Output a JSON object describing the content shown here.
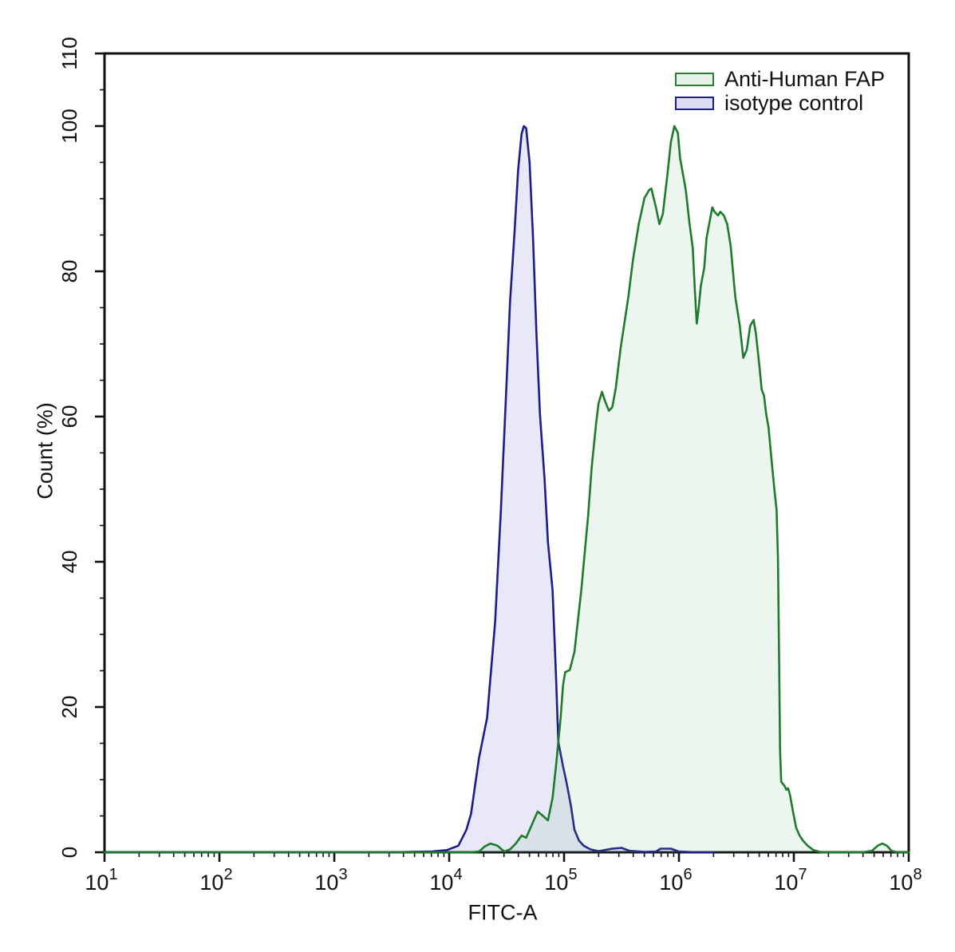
{
  "figure": {
    "background": "#ffffff",
    "axis_color": "#111111"
  },
  "legend": {
    "items": [
      {
        "label": "Anti-Human FAP",
        "swatch_stroke": "#2e7d36",
        "swatch_fill": "#e8f2e8"
      },
      {
        "label": "isotype control",
        "swatch_stroke": "#1c1c8c",
        "swatch_fill": "#dcdcf2"
      }
    ]
  },
  "chart_data": {
    "type": "area",
    "title": "",
    "xlabel": "FITC-A",
    "ylabel": "Count (%)",
    "x_scale": "log10",
    "xlim_log10": [
      1,
      8
    ],
    "ylim": [
      0,
      110
    ],
    "grid": false,
    "legend_position": "top-right-inside",
    "x_tick_base": "10",
    "x_tick_exponents": [
      1,
      2,
      3,
      4,
      5,
      6,
      7,
      8
    ],
    "x_minor_mantissas": [
      2,
      3,
      4,
      5,
      6,
      7,
      8,
      9
    ],
    "y_ticks_labeled": [
      0,
      20,
      40,
      60,
      80,
      100,
      110
    ],
    "y_minor_step": 5,
    "series": [
      {
        "name": "isotype control",
        "stroke": "#1c1c8c",
        "fill": "rgba(95,95,205,0.14)",
        "points_log10x_pct": [
          [
            1.0,
            0
          ],
          [
            3.5,
            0
          ],
          [
            3.85,
            0.1
          ],
          [
            3.98,
            0.3
          ],
          [
            4.08,
            0.9
          ],
          [
            4.15,
            3.1
          ],
          [
            4.19,
            5.3
          ],
          [
            4.22,
            8.6
          ],
          [
            4.26,
            13.0
          ],
          [
            4.33,
            18.5
          ],
          [
            4.4,
            31.7
          ],
          [
            4.45,
            47.1
          ],
          [
            4.5,
            64.8
          ],
          [
            4.53,
            75.8
          ],
          [
            4.57,
            85.7
          ],
          [
            4.6,
            93.9
          ],
          [
            4.63,
            98.9
          ],
          [
            4.65,
            100.0
          ],
          [
            4.67,
            99.7
          ],
          [
            4.7,
            95.0
          ],
          [
            4.73,
            84.6
          ],
          [
            4.76,
            71.4
          ],
          [
            4.79,
            60.3
          ],
          [
            4.83,
            51.5
          ],
          [
            4.86,
            42.7
          ],
          [
            4.9,
            36.1
          ],
          [
            4.93,
            24.3
          ],
          [
            4.95,
            15.2
          ],
          [
            4.99,
            11.9
          ],
          [
            5.02,
            9.7
          ],
          [
            5.06,
            6.4
          ],
          [
            5.09,
            3.1
          ],
          [
            5.13,
            1.6
          ],
          [
            5.17,
            0.9
          ],
          [
            5.23,
            0.4
          ],
          [
            5.3,
            0.15
          ],
          [
            5.42,
            0.5
          ],
          [
            5.5,
            0.6
          ],
          [
            5.57,
            0.2
          ],
          [
            5.7,
            0.05
          ],
          [
            5.8,
            0.1
          ],
          [
            5.84,
            0.5
          ],
          [
            5.93,
            0.5
          ],
          [
            6.0,
            0.1
          ],
          [
            6.15,
            0.0
          ],
          [
            6.3,
            0.0
          ]
        ]
      },
      {
        "name": "Anti-Human FAP",
        "stroke": "#1e7b2d",
        "fill": "rgba(110,180,120,0.13)",
        "points_log10x_pct": [
          [
            1.0,
            0
          ],
          [
            4.18,
            0
          ],
          [
            4.26,
            0.1
          ],
          [
            4.31,
            0.8
          ],
          [
            4.36,
            1.2
          ],
          [
            4.42,
            0.9
          ],
          [
            4.48,
            0.1
          ],
          [
            4.53,
            0.4
          ],
          [
            4.58,
            1.2
          ],
          [
            4.63,
            2.3
          ],
          [
            4.67,
            2.0
          ],
          [
            4.72,
            3.8
          ],
          [
            4.77,
            5.6
          ],
          [
            4.81,
            5.1
          ],
          [
            4.86,
            4.4
          ],
          [
            4.9,
            7.5
          ],
          [
            4.93,
            11.9
          ],
          [
            4.95,
            15.2
          ],
          [
            4.97,
            18.5
          ],
          [
            4.99,
            22.9
          ],
          [
            5.01,
            24.8
          ],
          [
            5.05,
            25.1
          ],
          [
            5.09,
            27.6
          ],
          [
            5.15,
            36.1
          ],
          [
            5.21,
            46.4
          ],
          [
            5.24,
            53.0
          ],
          [
            5.28,
            59.2
          ],
          [
            5.3,
            61.8
          ],
          [
            5.33,
            63.4
          ],
          [
            5.36,
            62.0
          ],
          [
            5.39,
            60.8
          ],
          [
            5.42,
            61.3
          ],
          [
            5.45,
            63.9
          ],
          [
            5.49,
            69.2
          ],
          [
            5.56,
            76.5
          ],
          [
            5.6,
            81.6
          ],
          [
            5.65,
            86.5
          ],
          [
            5.7,
            90.1
          ],
          [
            5.74,
            91.2
          ],
          [
            5.76,
            91.4
          ],
          [
            5.8,
            88.8
          ],
          [
            5.83,
            86.5
          ],
          [
            5.86,
            87.9
          ],
          [
            5.9,
            93.4
          ],
          [
            5.93,
            97.8
          ],
          [
            5.96,
            100.0
          ],
          [
            5.99,
            99.1
          ],
          [
            6.01,
            95.6
          ],
          [
            6.06,
            91.2
          ],
          [
            6.09,
            86.8
          ],
          [
            6.12,
            83.2
          ],
          [
            6.14,
            76.9
          ],
          [
            6.155,
            72.8
          ],
          [
            6.17,
            74.7
          ],
          [
            6.19,
            78.0
          ],
          [
            6.22,
            80.5
          ],
          [
            6.24,
            84.6
          ],
          [
            6.29,
            88.8
          ],
          [
            6.31,
            88.2
          ],
          [
            6.34,
            87.7
          ],
          [
            6.36,
            88.2
          ],
          [
            6.39,
            87.7
          ],
          [
            6.42,
            86.5
          ],
          [
            6.45,
            83.5
          ],
          [
            6.49,
            76.5
          ],
          [
            6.53,
            72.5
          ],
          [
            6.56,
            68.1
          ],
          [
            6.59,
            69.2
          ],
          [
            6.62,
            72.5
          ],
          [
            6.65,
            73.3
          ],
          [
            6.67,
            71.4
          ],
          [
            6.7,
            67.0
          ],
          [
            6.72,
            63.7
          ],
          [
            6.74,
            62.9
          ],
          [
            6.76,
            60.3
          ],
          [
            6.78,
            58.5
          ],
          [
            6.81,
            53.4
          ],
          [
            6.83,
            50.1
          ],
          [
            6.85,
            47.1
          ],
          [
            6.862,
            40.5
          ],
          [
            6.868,
            31.7
          ],
          [
            6.874,
            22.9
          ],
          [
            6.88,
            14.1
          ],
          [
            6.89,
            9.7
          ],
          [
            6.92,
            9.1
          ],
          [
            6.935,
            8.6
          ],
          [
            6.95,
            8.8
          ],
          [
            6.965,
            8.0
          ],
          [
            6.99,
            5.8
          ],
          [
            7.02,
            3.4
          ],
          [
            7.05,
            2.3
          ],
          [
            7.08,
            1.6
          ],
          [
            7.12,
            0.9
          ],
          [
            7.17,
            0.3
          ],
          [
            7.24,
            0.0
          ],
          [
            7.6,
            0.0
          ],
          [
            7.68,
            0.2
          ],
          [
            7.73,
            0.9
          ],
          [
            7.77,
            1.2
          ],
          [
            7.81,
            0.9
          ],
          [
            7.85,
            0.2
          ],
          [
            7.9,
            0.0
          ],
          [
            8.0,
            0.0
          ]
        ]
      }
    ]
  }
}
